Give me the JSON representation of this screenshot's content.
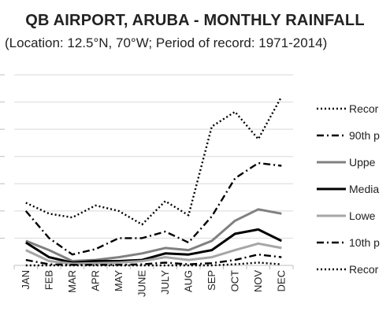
{
  "chart_data": {
    "type": "line",
    "title": "QB AIRPORT, ARUBA - MONTHLY RAINFALL",
    "subtitle": "(Location: 12.5°N, 70°W; Period of record: 1971-2014)",
    "categories": [
      "JAN",
      "FEB",
      "MAR",
      "APR",
      "MAY",
      "JUNE",
      "JULY",
      "AUG",
      "SEP",
      "OCT",
      "NOV",
      "DEC"
    ],
    "ylim": [
      0,
      350
    ],
    "grid": true,
    "legend_position": "right",
    "series": [
      {
        "name": "Recor",
        "style": "dotted",
        "color": "#000000",
        "values": [
          115,
          95,
          88,
          110,
          100,
          75,
          118,
          92,
          255,
          282,
          232,
          310
        ]
      },
      {
        "name": "90th p",
        "style": "dashdot",
        "color": "#000000",
        "values": [
          100,
          50,
          20,
          30,
          50,
          50,
          62,
          42,
          90,
          160,
          188,
          183
        ]
      },
      {
        "name": "Uppe",
        "style": "solid",
        "color": "#808080",
        "values": [
          45,
          28,
          8,
          10,
          15,
          22,
          32,
          28,
          45,
          82,
          103,
          95
        ]
      },
      {
        "name": "Media",
        "style": "solid",
        "color": "#000000",
        "values": [
          42,
          15,
          5,
          8,
          8,
          10,
          22,
          20,
          28,
          58,
          66,
          45
        ]
      },
      {
        "name": "Lowe",
        "style": "solid",
        "color": "#a6a6a6",
        "values": [
          28,
          8,
          3,
          4,
          5,
          8,
          15,
          10,
          15,
          28,
          40,
          32
        ]
      },
      {
        "name": "10th p",
        "style": "dashdot",
        "color": "#000000",
        "values": [
          10,
          2,
          1,
          1,
          1,
          2,
          5,
          2,
          4,
          10,
          20,
          15
        ]
      },
      {
        "name": "Recor",
        "style": "dotted",
        "color": "#000000",
        "values": [
          0,
          0,
          0,
          0,
          0,
          0,
          0,
          0,
          0,
          2,
          5,
          2
        ]
      }
    ]
  }
}
